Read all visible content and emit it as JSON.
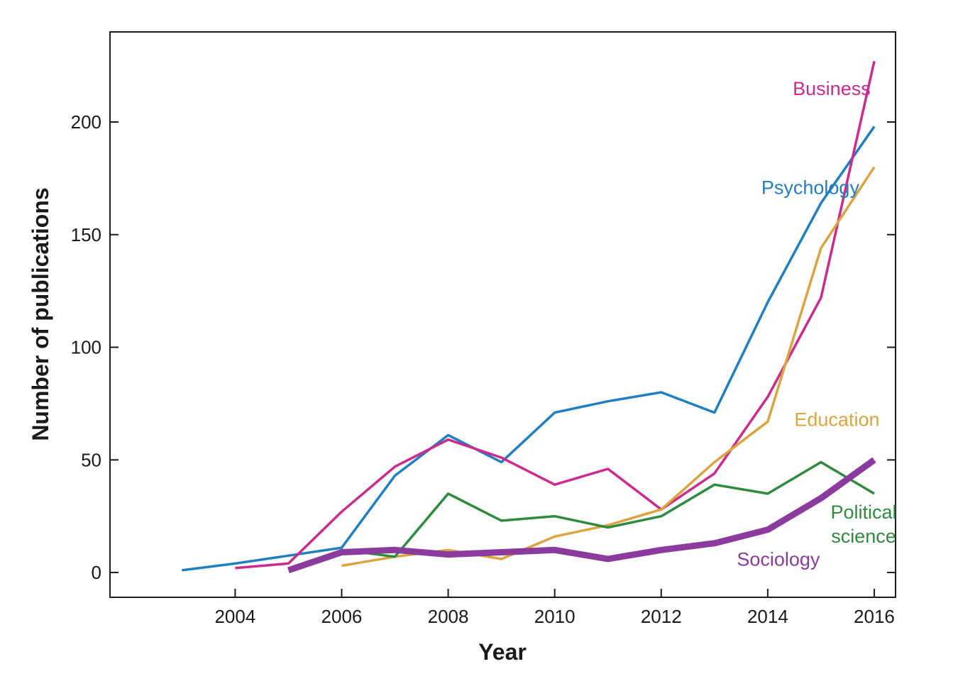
{
  "chart_data": {
    "type": "line",
    "title": "",
    "xlabel": "Year",
    "ylabel": "Number of publications",
    "xlim": [
      2001.65,
      2016.4
    ],
    "ylim": [
      -11,
      240
    ],
    "xticks": [
      2004,
      2006,
      2008,
      2010,
      2012,
      2014,
      2016
    ],
    "yticks": [
      0,
      50,
      100,
      150,
      200
    ],
    "grid": false,
    "legend": "inline labels",
    "series": [
      {
        "name": "Psychology",
        "color": "#1f7fc0",
        "width": "normal",
        "x": [
          2003,
          2004,
          2005,
          2006,
          2007,
          2008,
          2009,
          2010,
          2011,
          2012,
          2013,
          2014,
          2015,
          2016
        ],
        "y": [
          1,
          4,
          7.5,
          11,
          43,
          61,
          49,
          71,
          76,
          80,
          71,
          120,
          164,
          198
        ]
      },
      {
        "name": "Business",
        "color": "#cc2a8e",
        "width": "normal",
        "x": [
          2004,
          2005,
          2006,
          2007,
          2008,
          2009,
          2010,
          2011,
          2012,
          2013,
          2014,
          2015,
          2016
        ],
        "y": [
          2,
          4,
          27,
          47,
          59,
          51,
          39,
          46,
          28,
          44,
          78,
          122,
          227
        ]
      },
      {
        "name": "Education",
        "color": "#dca43f",
        "width": "normal",
        "x": [
          2006,
          2007,
          2008,
          2009,
          2010,
          2011,
          2012,
          2013,
          2014,
          2015,
          2016
        ],
        "y": [
          3,
          7,
          10,
          6,
          16,
          21,
          28,
          49,
          67,
          144,
          180
        ]
      },
      {
        "name": "Political science",
        "color": "#2e8b3e",
        "width": "normal",
        "x": [
          2006,
          2007,
          2008,
          2009,
          2010,
          2011,
          2012,
          2013,
          2014,
          2015,
          2016
        ],
        "y": [
          10,
          7,
          35,
          23,
          25,
          20,
          25,
          39,
          35,
          49,
          35
        ]
      },
      {
        "name": "Sociology",
        "color": "#8b3b9e",
        "width": "thick",
        "x": [
          2005,
          2006,
          2007,
          2008,
          2009,
          2010,
          2011,
          2012,
          2013,
          2014,
          2015,
          2016
        ],
        "y": [
          1,
          9,
          10,
          8,
          9,
          10,
          6,
          10,
          13,
          19,
          33,
          50
        ]
      }
    ],
    "labels": [
      {
        "series": "Business",
        "lines": [
          "Business"
        ],
        "anchor": [
          2015.2,
          212
        ]
      },
      {
        "series": "Psychology",
        "lines": [
          "Psychology"
        ],
        "anchor": [
          2014.8,
          168
        ]
      },
      {
        "series": "Education",
        "lines": [
          "Education"
        ],
        "anchor": [
          2015.3,
          65
        ]
      },
      {
        "series": "Political science",
        "lines": [
          "Political",
          "science"
        ],
        "anchor": [
          2015.8,
          24
        ]
      },
      {
        "series": "Sociology",
        "lines": [
          "Sociology"
        ],
        "anchor": [
          2014.2,
          3
        ]
      }
    ]
  }
}
